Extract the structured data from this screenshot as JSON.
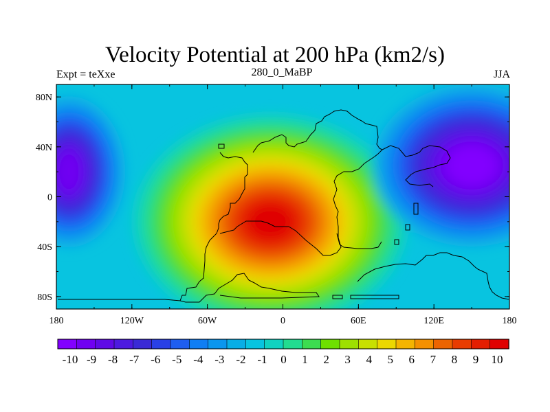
{
  "chart_data": {
    "type": "heatmap",
    "title": "Velocity Potential at 200 hPa (km2/s)",
    "subtitle_left": "Expt = teXxe",
    "subtitle_center": "280_0_MaBP",
    "subtitle_right": "JJA",
    "x_range": [
      -180,
      180
    ],
    "y_range": [
      -90,
      90
    ],
    "x_ticks": [
      {
        "value": -180,
        "label": "180"
      },
      {
        "value": -120,
        "label": "120W"
      },
      {
        "value": -60,
        "label": "60W"
      },
      {
        "value": 0,
        "label": "0"
      },
      {
        "value": 60,
        "label": "60E"
      },
      {
        "value": 120,
        "label": "120E"
      },
      {
        "value": 180,
        "label": "180"
      }
    ],
    "y_ticks": [
      {
        "value": 80,
        "label": "80N"
      },
      {
        "value": 40,
        "label": "40N"
      },
      {
        "value": 0,
        "label": "0"
      },
      {
        "value": -40,
        "label": "40S"
      },
      {
        "value": -80,
        "label": "80S"
      }
    ],
    "field_centers": [
      {
        "name": "maximum",
        "lon": -10,
        "lat": -20,
        "value": 10.5
      },
      {
        "name": "minimum-east",
        "lon": 150,
        "lat": 25,
        "value": -10.5
      },
      {
        "name": "minimum-west",
        "lon": -170,
        "lat": 20,
        "value": -9
      }
    ],
    "colorbar": {
      "levels": [
        -10,
        -9,
        -8,
        -7,
        -6,
        -5,
        -4,
        -3,
        -2,
        -1,
        0,
        1,
        2,
        3,
        4,
        5,
        6,
        7,
        8,
        9,
        10
      ],
      "labels": [
        "-10",
        "-9",
        "-8",
        "-7",
        "-6",
        "-5",
        "-4",
        "-3",
        "-2",
        "-1",
        "0",
        "1",
        "2",
        "3",
        "4",
        "5",
        "6",
        "7",
        "8",
        "9",
        "10"
      ],
      "colors": [
        "#8200ff",
        "#7000f2",
        "#5f0ae6",
        "#4d1ae0",
        "#3a2ad6",
        "#2a40e6",
        "#1e5ef0",
        "#0f7ef4",
        "#0a96ee",
        "#08aee6",
        "#08c4e0",
        "#10d2c0",
        "#22dc90",
        "#3cdc50",
        "#6ee000",
        "#9ee000",
        "#c8e000",
        "#ecd800",
        "#f4b400",
        "#f49000",
        "#ec6400",
        "#e83c00",
        "#e41e00",
        "#e00000"
      ]
    }
  }
}
